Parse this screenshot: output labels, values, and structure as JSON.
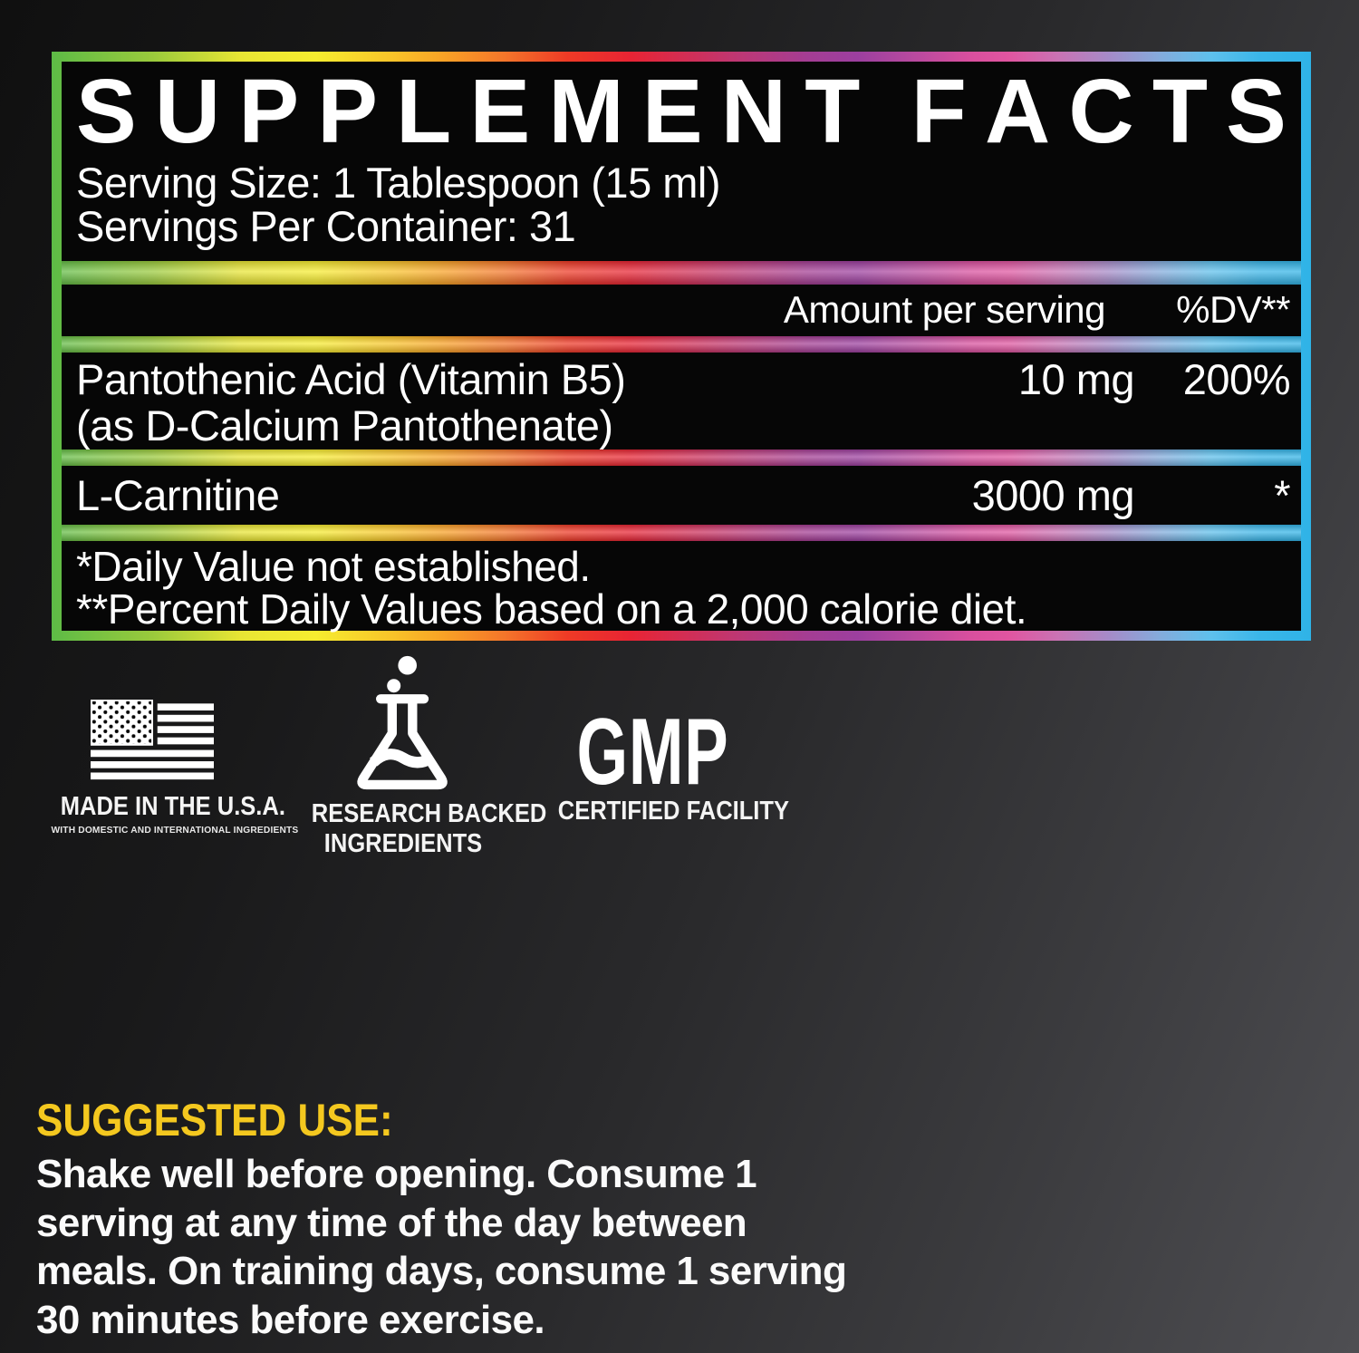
{
  "panel": {
    "title": "SUPPLEMENT FACTS",
    "serving_size": "Serving Size: 1 Tablespoon (15 ml)",
    "servings_per_container": "Servings Per Container: 31",
    "columns": {
      "amount": "Amount per serving",
      "dv": "%DV**"
    },
    "rows": [
      {
        "name": "Pantothenic Acid (Vitamin B5)",
        "name_line2": "(as D-Calcium Pantothenate)",
        "amount": "10 mg",
        "dv": "200%"
      },
      {
        "name": "L-Carnitine",
        "amount": "3000 mg",
        "dv": "*"
      }
    ],
    "footnotes": [
      "*Daily Value not established.",
      "**Percent Daily Values based on a 2,000 calorie diet."
    ]
  },
  "badges": [
    {
      "icon": "us-flag-icon",
      "title": "MADE IN THE U.S.A.",
      "subtitle": "WITH DOMESTIC AND INTERNATIONAL INGREDIENTS"
    },
    {
      "icon": "flask-icon",
      "title": "RESEARCH BACKED",
      "title2": "INGREDIENTS"
    },
    {
      "big": "GMP",
      "title": "CERTIFIED FACILITY"
    }
  ],
  "suggested_use": {
    "heading": "SUGGESTED USE:",
    "lines": [
      "Shake well before opening. Consume 1",
      "serving at any time of the day between",
      "meals. On training days, consume 1 serving",
      "30 minutes before exercise."
    ]
  },
  "colors": {
    "accent_yellow": "#F4C81F",
    "panel_black": "#060606",
    "text_white": "#FFFFFF",
    "rainbow": [
      "#5DBB46",
      "#F6EC2F",
      "#F9A326",
      "#E82434",
      "#9C3F9F",
      "#D94F9E",
      "#A58BC8",
      "#2FB3E7"
    ]
  }
}
